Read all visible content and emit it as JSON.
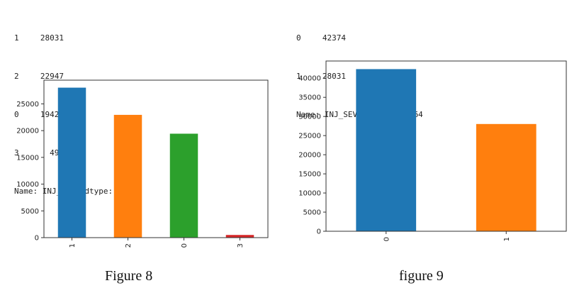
{
  "figures": [
    {
      "output_lines": [
        {
          "index": "1",
          "value": "28031"
        },
        {
          "index": "2",
          "value": "22947"
        },
        {
          "index": "0",
          "value": "19427"
        },
        {
          "index": "3",
          "value": "499"
        }
      ],
      "name_line": "Name: INJ_SEV, dtype: int64",
      "caption": "Figure 8"
    },
    {
      "output_lines": [
        {
          "index": "0",
          "value": "42374"
        },
        {
          "index": "1",
          "value": "28031"
        }
      ],
      "name_line": "Name: INJ_SEV, dtype: int64",
      "caption": "figure 9"
    }
  ],
  "chart_data": [
    {
      "type": "bar",
      "categories": [
        "1",
        "2",
        "0",
        "3"
      ],
      "values": [
        28031,
        22947,
        19427,
        499
      ],
      "colors": [
        "#1f77b4",
        "#ff7f0e",
        "#2ca02c",
        "#d62728"
      ],
      "title": "",
      "xlabel": "",
      "ylabel": "",
      "ylim": [
        0,
        29433
      ],
      "yticks": [
        0,
        5000,
        10000,
        15000,
        20000,
        25000
      ],
      "xtick_rotation": 90,
      "grid": false
    },
    {
      "type": "bar",
      "categories": [
        "0",
        "1"
      ],
      "values": [
        42374,
        28031
      ],
      "colors": [
        "#1f77b4",
        "#ff7f0e"
      ],
      "title": "",
      "xlabel": "",
      "ylabel": "",
      "ylim": [
        0,
        44493
      ],
      "yticks": [
        0,
        5000,
        10000,
        15000,
        20000,
        25000,
        30000,
        35000,
        40000
      ],
      "xtick_rotation": 90,
      "grid": false
    }
  ]
}
